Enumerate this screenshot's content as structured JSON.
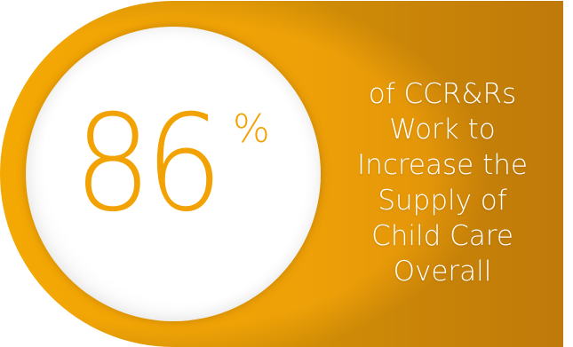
{
  "stat": {
    "value": "86",
    "unit": "%"
  },
  "caption": {
    "lines": [
      "of CCR&Rs",
      "Work to",
      "Increase the",
      "Supply of",
      "Child Care",
      "Overall"
    ]
  },
  "colors": {
    "banner_orange_light": "#f2a203",
    "banner_orange_dark": "#d9890a",
    "circle_fill": "#ffffff",
    "number_color": "#f2a203",
    "caption_color": "#ffffff"
  }
}
